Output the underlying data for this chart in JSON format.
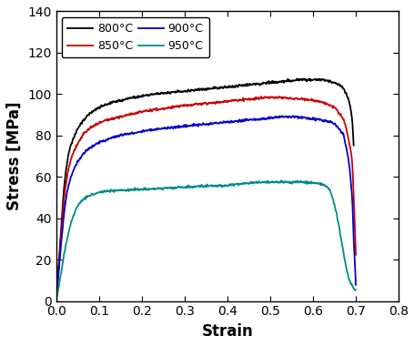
{
  "title": "",
  "xlabel": "Strain",
  "ylabel": "Stress [MPa]",
  "xlim": [
    0.0,
    0.8
  ],
  "ylim": [
    0,
    140
  ],
  "xticks": [
    0.0,
    0.1,
    0.2,
    0.3,
    0.4,
    0.5,
    0.6,
    0.7,
    0.8
  ],
  "yticks": [
    0,
    20,
    40,
    60,
    80,
    100,
    120,
    140
  ],
  "legend_labels": [
    "800°C",
    "850°C",
    "900°C",
    "950°C"
  ],
  "curves": {
    "800": {
      "color": "#000000",
      "segments": [
        [
          0.0,
          0.0
        ],
        [
          0.01,
          30.0
        ],
        [
          0.02,
          58.0
        ],
        [
          0.03,
          72.0
        ],
        [
          0.05,
          83.0
        ],
        [
          0.07,
          89.0
        ],
        [
          0.1,
          93.5
        ],
        [
          0.15,
          97.0
        ],
        [
          0.2,
          99.0
        ],
        [
          0.25,
          100.5
        ],
        [
          0.3,
          101.5
        ],
        [
          0.35,
          102.5
        ],
        [
          0.4,
          103.5
        ],
        [
          0.45,
          104.5
        ],
        [
          0.5,
          105.5
        ],
        [
          0.55,
          106.5
        ],
        [
          0.58,
          107.0
        ],
        [
          0.6,
          107.0
        ],
        [
          0.62,
          107.0
        ],
        [
          0.63,
          106.5
        ],
        [
          0.65,
          105.5
        ],
        [
          0.66,
          104.5
        ],
        [
          0.67,
          103.0
        ],
        [
          0.675,
          101.0
        ],
        [
          0.68,
          99.0
        ],
        [
          0.685,
          96.0
        ],
        [
          0.69,
          90.0
        ],
        [
          0.693,
          83.0
        ],
        [
          0.695,
          75.0
        ]
      ]
    },
    "850": {
      "color": "#cc0000",
      "segments": [
        [
          0.0,
          0.0
        ],
        [
          0.01,
          28.0
        ],
        [
          0.02,
          52.0
        ],
        [
          0.03,
          65.0
        ],
        [
          0.05,
          76.0
        ],
        [
          0.07,
          82.0
        ],
        [
          0.1,
          86.0
        ],
        [
          0.15,
          89.0
        ],
        [
          0.2,
          91.5
        ],
        [
          0.25,
          93.0
        ],
        [
          0.3,
          94.5
        ],
        [
          0.35,
          95.5
        ],
        [
          0.4,
          96.5
        ],
        [
          0.45,
          97.5
        ],
        [
          0.47,
          98.0
        ],
        [
          0.5,
          98.5
        ],
        [
          0.55,
          98.0
        ],
        [
          0.6,
          97.0
        ],
        [
          0.63,
          95.5
        ],
        [
          0.65,
          93.5
        ],
        [
          0.66,
          91.0
        ],
        [
          0.67,
          88.0
        ],
        [
          0.675,
          85.0
        ],
        [
          0.68,
          81.0
        ],
        [
          0.685,
          76.0
        ],
        [
          0.69,
          70.0
        ],
        [
          0.693,
          62.0
        ],
        [
          0.695,
          50.0
        ],
        [
          0.698,
          35.0
        ],
        [
          0.7,
          22.0
        ]
      ]
    },
    "900": {
      "color": "#0000cc",
      "segments": [
        [
          0.0,
          0.0
        ],
        [
          0.01,
          24.0
        ],
        [
          0.02,
          45.0
        ],
        [
          0.03,
          57.0
        ],
        [
          0.05,
          67.0
        ],
        [
          0.07,
          72.5
        ],
        [
          0.1,
          76.5
        ],
        [
          0.15,
          80.0
        ],
        [
          0.2,
          82.0
        ],
        [
          0.25,
          83.5
        ],
        [
          0.3,
          84.5
        ],
        [
          0.35,
          85.5
        ],
        [
          0.4,
          86.5
        ],
        [
          0.45,
          87.5
        ],
        [
          0.5,
          88.5
        ],
        [
          0.52,
          89.0
        ],
        [
          0.55,
          89.0
        ],
        [
          0.58,
          88.5
        ],
        [
          0.6,
          88.0
        ],
        [
          0.62,
          87.5
        ],
        [
          0.64,
          86.5
        ],
        [
          0.65,
          85.5
        ],
        [
          0.66,
          83.5
        ],
        [
          0.67,
          80.5
        ],
        [
          0.675,
          77.0
        ],
        [
          0.68,
          72.0
        ],
        [
          0.685,
          65.0
        ],
        [
          0.69,
          54.0
        ],
        [
          0.693,
          43.0
        ],
        [
          0.695,
          30.0
        ],
        [
          0.698,
          18.0
        ],
        [
          0.7,
          8.0
        ]
      ]
    },
    "950": {
      "color": "#008B8B",
      "segments": [
        [
          0.0,
          0.0
        ],
        [
          0.01,
          12.0
        ],
        [
          0.02,
          24.0
        ],
        [
          0.03,
          34.0
        ],
        [
          0.04,
          41.0
        ],
        [
          0.05,
          46.0
        ],
        [
          0.07,
          50.0
        ],
        [
          0.1,
          52.5
        ],
        [
          0.15,
          53.5
        ],
        [
          0.2,
          54.0
        ],
        [
          0.25,
          54.5
        ],
        [
          0.3,
          55.0
        ],
        [
          0.35,
          55.5
        ],
        [
          0.4,
          56.0
        ],
        [
          0.45,
          57.0
        ],
        [
          0.5,
          57.5
        ],
        [
          0.55,
          57.5
        ],
        [
          0.58,
          57.5
        ],
        [
          0.6,
          57.0
        ],
        [
          0.62,
          56.5
        ],
        [
          0.63,
          55.5
        ],
        [
          0.64,
          53.5
        ],
        [
          0.645,
          50.5
        ],
        [
          0.65,
          46.5
        ],
        [
          0.655,
          42.0
        ],
        [
          0.66,
          37.0
        ],
        [
          0.665,
          31.0
        ],
        [
          0.67,
          25.0
        ],
        [
          0.675,
          19.0
        ],
        [
          0.68,
          14.0
        ],
        [
          0.685,
          10.0
        ],
        [
          0.69,
          8.0
        ],
        [
          0.695,
          6.0
        ],
        [
          0.7,
          5.0
        ]
      ]
    }
  },
  "background_color": "#ffffff",
  "axis_label_fontsize": 12,
  "tick_fontsize": 10,
  "legend_fontsize": 9,
  "line_width": 1.3
}
